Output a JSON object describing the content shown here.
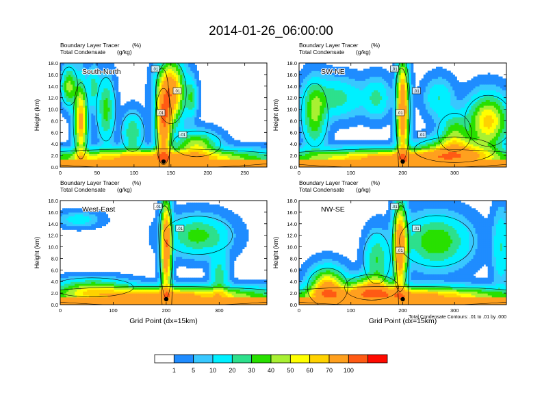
{
  "title": "2014-01-26_06:00:00",
  "colors": {
    "levels": [
      "#ffffff",
      "#1f8cff",
      "#38c8ff",
      "#00f0ff",
      "#2de08c",
      "#28e000",
      "#a8f032",
      "#ffff00",
      "#ffd200",
      "#ffa01e",
      "#ff5a14",
      "#ff0a00"
    ]
  },
  "chart_data": [
    {
      "type": "heatmap",
      "panel_label": "South-North",
      "left_string_1": "Boundary Layer Tracer",
      "right_string_1": "(%)",
      "left_string_2": "Total Condensate",
      "right_string_2": "(g/kg)",
      "ylabel": "Height (km)",
      "xlabel": "",
      "xlim": [
        0,
        280
      ],
      "ylim": [
        0,
        18
      ],
      "x_ticks": [
        "0",
        "50",
        "100",
        "150",
        "200",
        "250"
      ],
      "y_ticks": [
        "0.0",
        "2.0",
        "4.0",
        "6.0",
        "8.0",
        "10.0",
        "12.0",
        "14.0",
        "16.0",
        "18.0"
      ],
      "contour_labels": [
        ".01",
        ".01",
        ".01",
        ".01"
      ],
      "storm_center_x": 140,
      "blobs": [
        {
          "x": 28,
          "y": 8,
          "w": 8,
          "h": 6,
          "v": 75
        },
        {
          "x": 12,
          "y": 14,
          "w": 9,
          "h": 3,
          "v": 45
        },
        {
          "x": 45,
          "y": 14,
          "w": 7,
          "h": 3,
          "v": 25
        },
        {
          "x": 62,
          "y": 10,
          "w": 10,
          "h": 5,
          "v": 35
        },
        {
          "x": 98,
          "y": 6,
          "w": 12,
          "h": 3,
          "v": 30
        },
        {
          "x": 150,
          "y": 13,
          "w": 16,
          "h": 5,
          "v": 90
        },
        {
          "x": 140,
          "y": 7,
          "w": 9,
          "h": 6,
          "v": 85
        },
        {
          "x": 178,
          "y": 12,
          "w": 7,
          "h": 3,
          "v": 28
        },
        {
          "x": 185,
          "y": 4,
          "w": 25,
          "h": 2,
          "v": 45
        },
        {
          "x": 130,
          "y": 1.5,
          "w": 140,
          "h": 1.5,
          "v": 82
        }
      ]
    },
    {
      "type": "heatmap",
      "panel_label": "SW-NE",
      "left_string_1": "Boundary Layer Tracer",
      "right_string_1": "(%)",
      "left_string_2": "Total Condensate",
      "right_string_2": "(g/kg)",
      "ylabel": "Height (km)",
      "xlabel": "",
      "xlim": [
        0,
        400
      ],
      "ylim": [
        0,
        18
      ],
      "x_ticks": [
        "0",
        "100",
        "200",
        "300"
      ],
      "y_ticks": [
        "0.0",
        "2.0",
        "4.0",
        "6.0",
        "8.0",
        "10.0",
        "12.0",
        "14.0",
        "16.0",
        "18.0"
      ],
      "contour_labels": [
        ".01",
        ".01",
        ".01",
        ".01"
      ],
      "storm_center_x": 200,
      "blobs": [
        {
          "x": 70,
          "y": 12,
          "w": 50,
          "h": 3,
          "v": 25
        },
        {
          "x": 30,
          "y": 9,
          "w": 20,
          "h": 5,
          "v": 40
        },
        {
          "x": 200,
          "y": 10,
          "w": 11,
          "h": 8,
          "v": 95
        },
        {
          "x": 150,
          "y": 12,
          "w": 22,
          "h": 3,
          "v": 22
        },
        {
          "x": 270,
          "y": 12,
          "w": 25,
          "h": 3,
          "v": 20
        },
        {
          "x": 300,
          "y": 6,
          "w": 25,
          "h": 3,
          "v": 35
        },
        {
          "x": 365,
          "y": 8,
          "w": 35,
          "h": 4,
          "v": 65
        },
        {
          "x": 300,
          "y": 3,
          "w": 60,
          "h": 2,
          "v": 55
        },
        {
          "x": 200,
          "y": 1.5,
          "w": 200,
          "h": 1.5,
          "v": 82
        }
      ]
    },
    {
      "type": "heatmap",
      "panel_label": "West-East",
      "left_string_1": "Boundary Layer Tracer",
      "right_string_1": "(%)",
      "left_string_2": "Total Condensate",
      "right_string_2": "(g/kg)",
      "ylabel": "Height (km)",
      "xlabel": "Grid Point (dx=15km)",
      "xlim": [
        0,
        390
      ],
      "ylim": [
        0,
        18
      ],
      "x_ticks": [
        "0",
        "100",
        "200",
        "300"
      ],
      "y_ticks": [
        "0.0",
        "2.0",
        "4.0",
        "6.0",
        "8.0",
        "10.0",
        "12.0",
        "14.0",
        "16.0",
        "18.0"
      ],
      "contour_labels": [
        ".01",
        ".01"
      ],
      "storm_center_x": 200,
      "blobs": [
        {
          "x": 35,
          "y": 14.8,
          "w": 35,
          "h": 1.2,
          "v": 15
        },
        {
          "x": 200,
          "y": 10,
          "w": 9,
          "h": 8,
          "v": 95
        },
        {
          "x": 260,
          "y": 12,
          "w": 50,
          "h": 3,
          "v": 35
        },
        {
          "x": 300,
          "y": 5,
          "w": 15,
          "h": 4,
          "v": 25
        },
        {
          "x": 60,
          "y": 3,
          "w": 60,
          "h": 1.5,
          "v": 35
        },
        {
          "x": 195,
          "y": 1.5,
          "w": 195,
          "h": 1.5,
          "v": 80
        }
      ]
    },
    {
      "type": "heatmap",
      "panel_label": "NW-SE",
      "left_string_1": "Boundary Layer Tracer",
      "right_string_1": "(%)",
      "left_string_2": "Total Condensate",
      "right_string_2": "(g/kg)",
      "ylabel": "Height (km)",
      "xlabel": "Grid Point (dx=15km)",
      "contour_info": "Total Condensate Contours: .01 to .01 by .000",
      "xlim": [
        0,
        400
      ],
      "ylim": [
        0,
        18
      ],
      "x_ticks": [
        "0",
        "100",
        "200",
        "300"
      ],
      "y_ticks": [
        "0.0",
        "2.0",
        "4.0",
        "6.0",
        "8.0",
        "10.0",
        "12.0",
        "14.0",
        "16.0",
        "18.0"
      ],
      "contour_labels": [
        ".01",
        ".01",
        ".01"
      ],
      "storm_center_x": 200,
      "blobs": [
        {
          "x": 55,
          "y": 3,
          "w": 30,
          "h": 3,
          "v": 75
        },
        {
          "x": 195,
          "y": 10,
          "w": 12,
          "h": 7,
          "v": 92
        },
        {
          "x": 265,
          "y": 11,
          "w": 55,
          "h": 4,
          "v": 40
        },
        {
          "x": 150,
          "y": 8,
          "w": 20,
          "h": 4,
          "v": 30
        },
        {
          "x": 140,
          "y": 3,
          "w": 40,
          "h": 2,
          "v": 60
        },
        {
          "x": 390,
          "y": 10,
          "w": 15,
          "h": 6,
          "v": 20
        },
        {
          "x": 200,
          "y": 1.5,
          "w": 200,
          "h": 1.5,
          "v": 82
        }
      ]
    }
  ],
  "colorbar": {
    "labels": [
      "1",
      "5",
      "10",
      "20",
      "30",
      "40",
      "50",
      "60",
      "70",
      "100"
    ],
    "levels": [
      0,
      1,
      5,
      10,
      20,
      30,
      40,
      50,
      60,
      70,
      100
    ]
  }
}
